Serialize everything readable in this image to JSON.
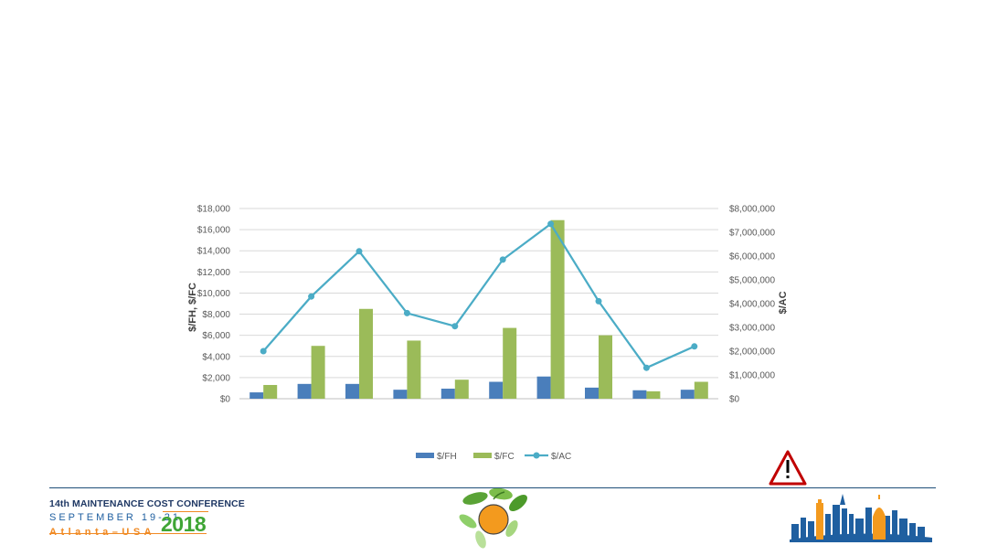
{
  "chart_data": {
    "type": "bar",
    "combo": "bar+line",
    "categories": [
      "",
      "",
      "",
      "",
      "",
      "",
      "",
      "",
      "",
      ""
    ],
    "series": [
      {
        "name": "$/FH",
        "type": "bar",
        "axis": "left",
        "color": "#4a7ebb",
        "values": [
          600,
          1400,
          1400,
          850,
          950,
          1600,
          2100,
          1050,
          800,
          850
        ]
      },
      {
        "name": "$/FC",
        "type": "bar",
        "axis": "left",
        "color": "#9bbb59",
        "values": [
          1300,
          5000,
          8500,
          5500,
          1800,
          6700,
          16900,
          6000,
          700,
          1600
        ]
      },
      {
        "name": "$/AC",
        "type": "line",
        "axis": "right",
        "color": "#4bacc6",
        "values": [
          2000000,
          4300000,
          6200000,
          3600000,
          3050000,
          5850000,
          7350000,
          4100000,
          1300000,
          2200000
        ]
      }
    ],
    "ylabel": "$/FH, $/FC",
    "y2label": "$/AC",
    "ylim": [
      0,
      18000
    ],
    "y2lim": [
      0,
      8000000
    ],
    "yticks": [
      "$0",
      "$2,000",
      "$4,000",
      "$6,000",
      "$8,000",
      "$10,000",
      "$12,000",
      "$14,000",
      "$16,000",
      "$18,000"
    ],
    "y2ticks": [
      "$0",
      "$1,000,000",
      "$2,000,000",
      "$3,000,000",
      "$4,000,000",
      "$5,000,000",
      "$6,000,000",
      "$7,000,000",
      "$8,000,000"
    ],
    "grid": true,
    "legend": "bottom"
  },
  "footer": {
    "conference_title": "14th MAINTENANCE COST CONFERENCE",
    "dates": "SEPTEMBER 19-21",
    "city": "Atlanta–USA",
    "year": "2018"
  },
  "icons": {
    "warning": "warning-triangle-icon",
    "orange": "orange-logo-icon",
    "skyline": "atlanta-skyline-icon"
  },
  "colors": {
    "navy": "#1f3864",
    "orange": "#f08a24",
    "green": "#3fa535",
    "warning_red": "#c00000"
  }
}
